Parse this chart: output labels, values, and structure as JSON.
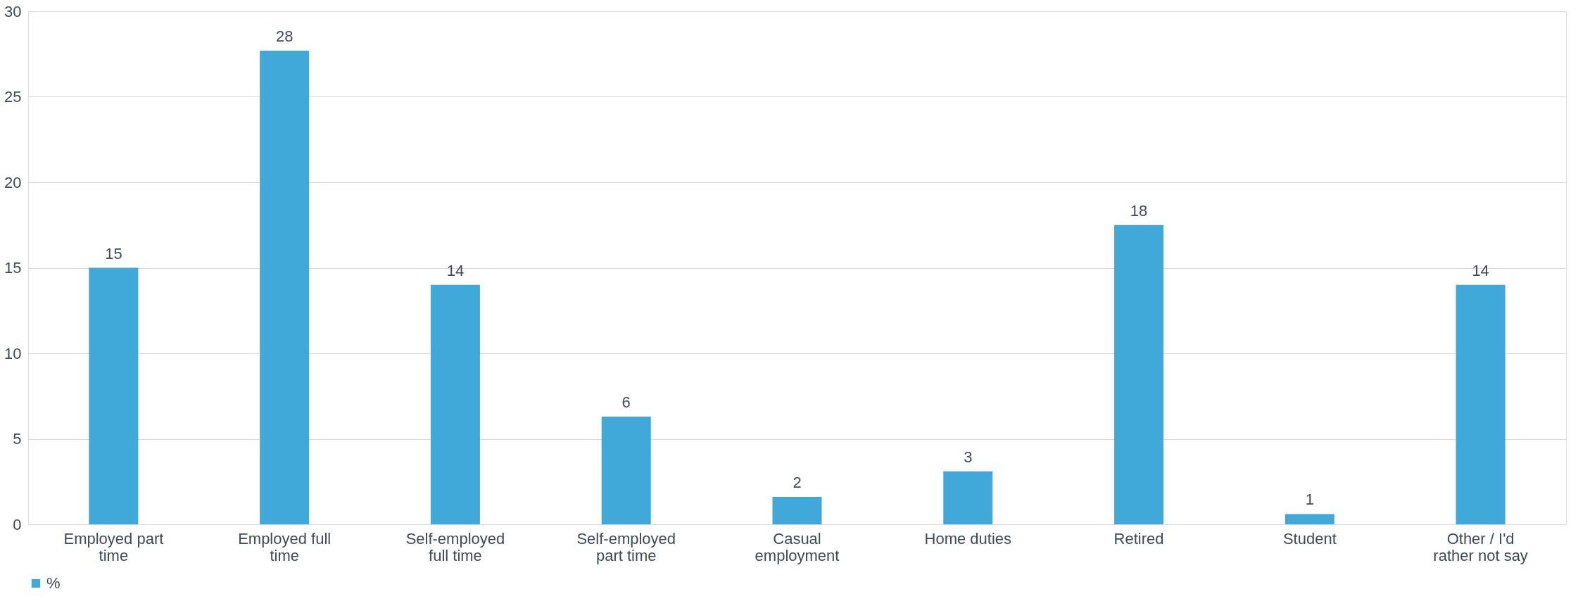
{
  "chart_data": {
    "type": "bar",
    "categories": [
      "Employed part time",
      "Employed full time",
      "Self-employed full time",
      "Self-employed part time",
      "Casual employment",
      "Home duties",
      "Retired",
      "Student",
      "Other / I'd rather not say"
    ],
    "series": [
      {
        "name": "%",
        "color": "#41a9d9",
        "values": [
          15.0,
          27.7,
          14.0,
          6.3,
          1.6,
          3.1,
          17.5,
          0.6,
          14.0
        ],
        "value_labels": [
          "15",
          "28",
          "14",
          "6",
          "2",
          "3",
          "18",
          "1",
          "14"
        ]
      }
    ],
    "ylim": [
      0,
      30
    ],
    "yticks": [
      0,
      5,
      10,
      15,
      20,
      25,
      30
    ],
    "grid": "y",
    "legend": "bottom"
  }
}
